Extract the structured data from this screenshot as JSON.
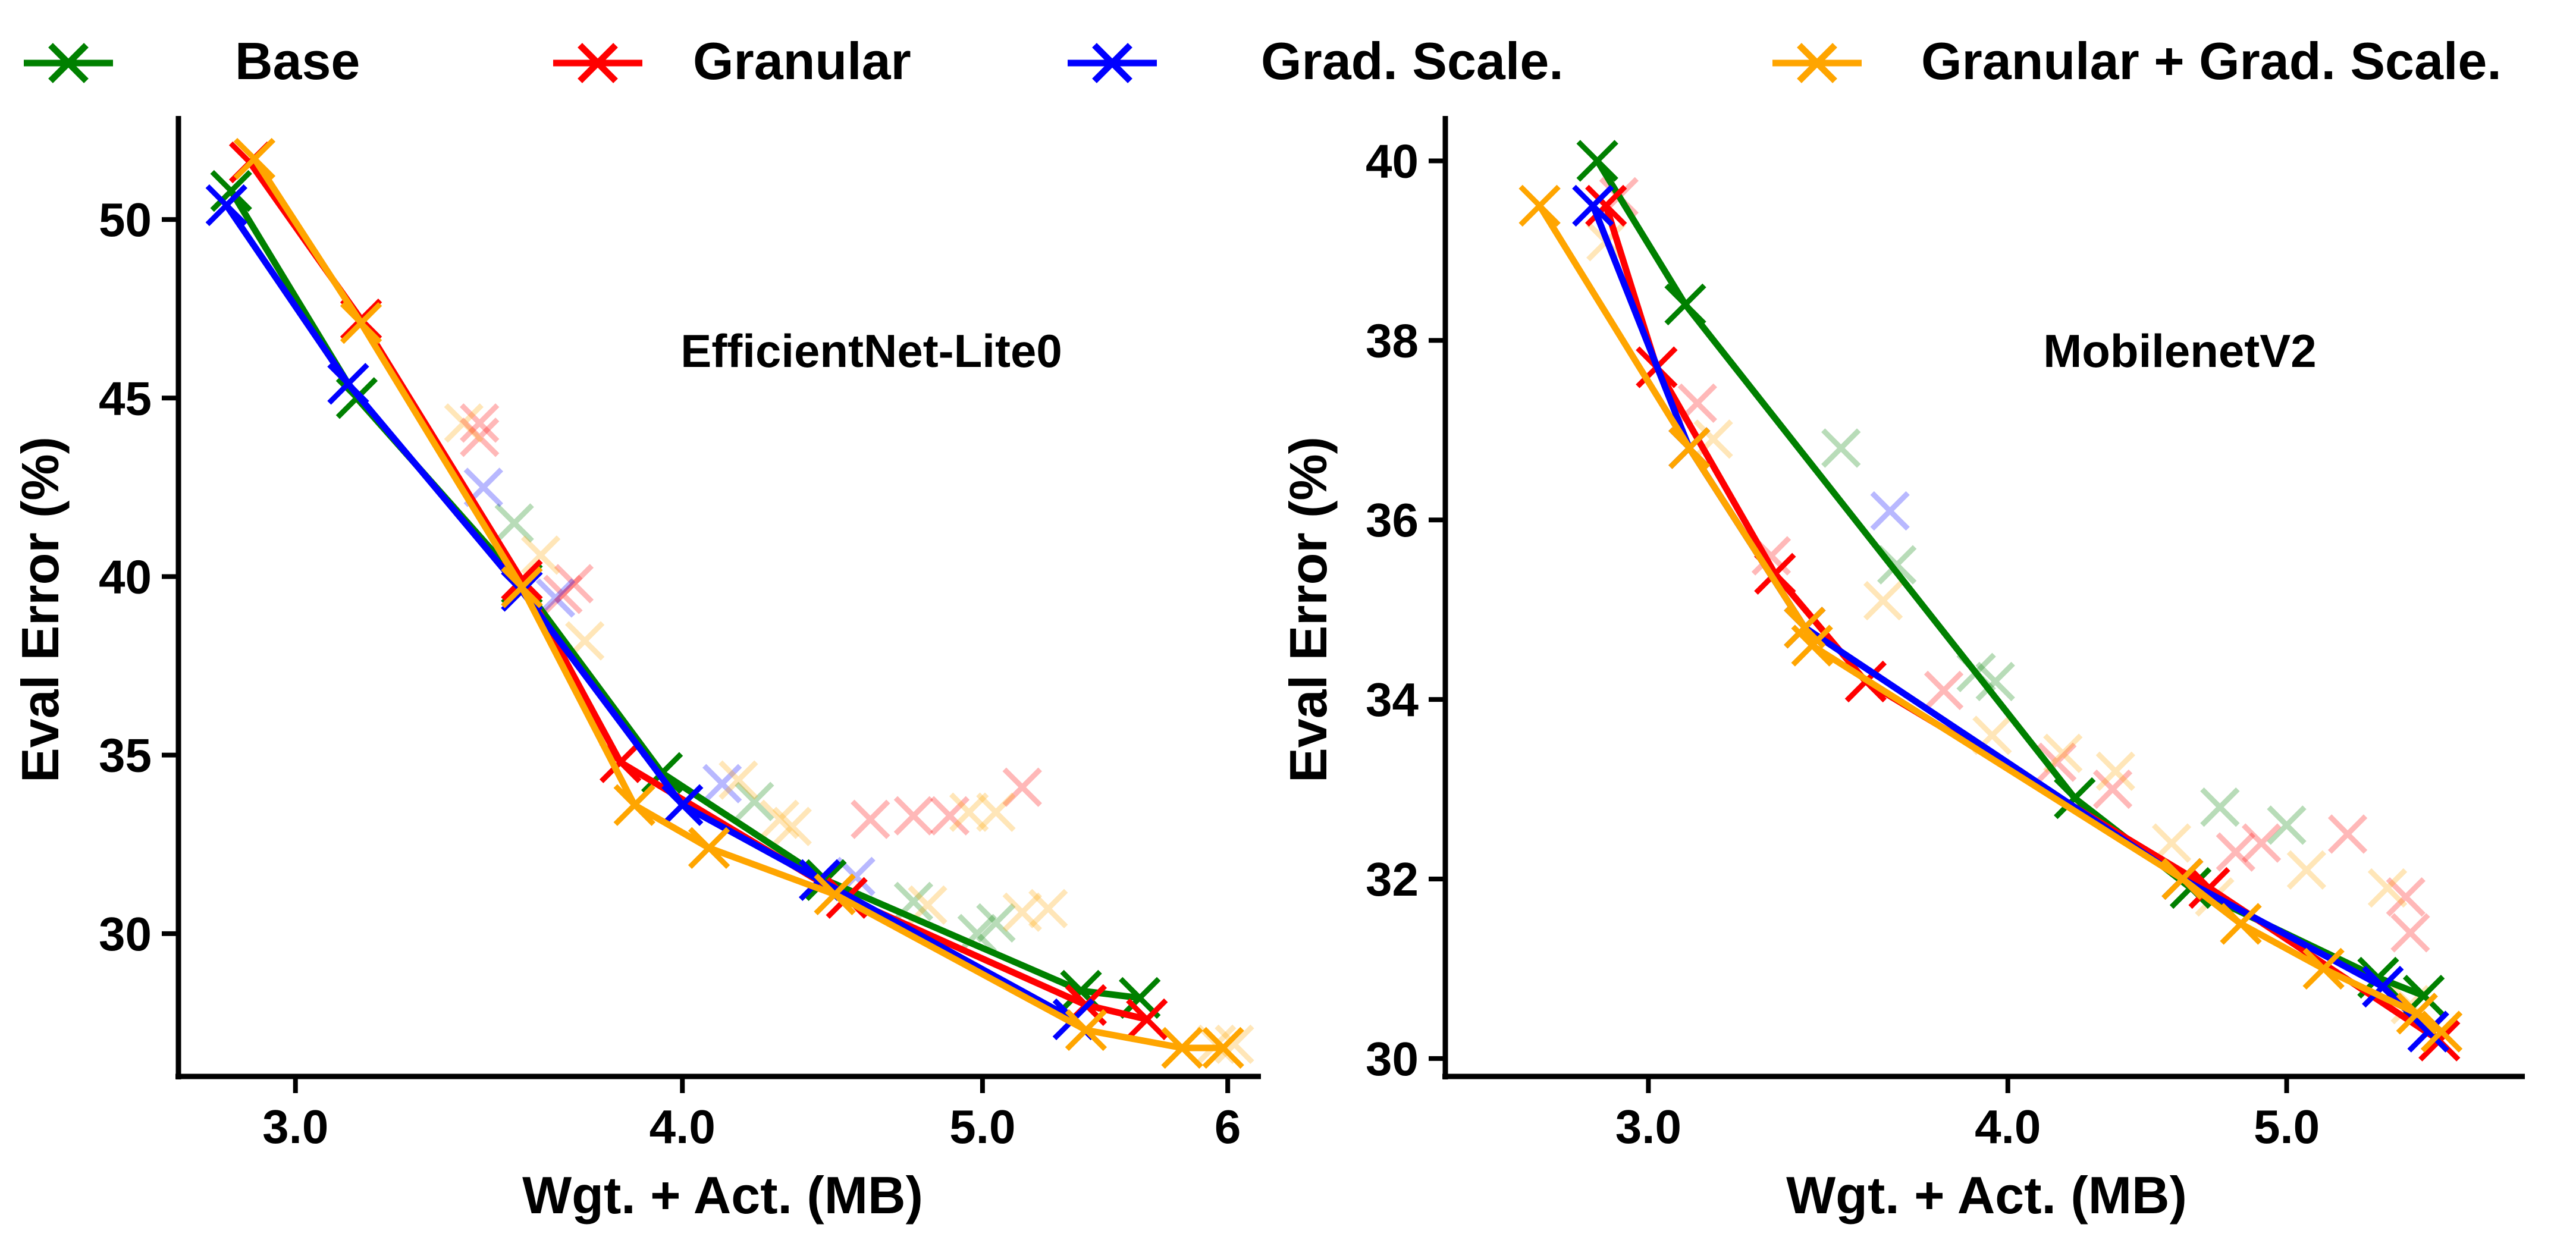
{
  "legend": [
    {
      "label": "Base",
      "color": "#008000"
    },
    {
      "label": "Granular",
      "color": "#ff0000"
    },
    {
      "label": "Grad. Scale.",
      "color": "#0000ff"
    },
    {
      "label": "Granular + Grad. Scale.",
      "color": "#ffa500"
    }
  ],
  "chart_data": [
    {
      "type": "line",
      "title": "EfficientNet-Lite0",
      "xlabel": "Wgt. + Act. (MB)",
      "ylabel": "Eval Error (%)",
      "xscale": "log",
      "xlim": [
        2.75,
        6.15
      ],
      "ylim": [
        26.0,
        52.9
      ],
      "xticks": [
        {
          "value": 3.0,
          "label": "3.0"
        },
        {
          "value": 4.0,
          "label": "4.0"
        },
        {
          "value": 5.0,
          "label": "5.0"
        },
        {
          "value": 6.0,
          "label": "6"
        }
      ],
      "yticks": [
        {
          "value": 30,
          "label": "30"
        },
        {
          "value": 35,
          "label": "35"
        },
        {
          "value": 40,
          "label": "40"
        },
        {
          "value": 45,
          "label": "45"
        },
        {
          "value": 50,
          "label": "50"
        }
      ],
      "series": [
        {
          "name": "Base",
          "color": "#008000",
          "line": [
            [
              2.86,
              50.8
            ],
            [
              3.14,
              45.0
            ],
            [
              3.55,
              39.8
            ],
            [
              3.94,
              34.5
            ],
            [
              4.45,
              31.5
            ],
            [
              5.38,
              28.4
            ],
            [
              5.62,
              28.2
            ]
          ],
          "scatter": [
            [
              3.53,
              41.5
            ],
            [
              4.22,
              33.7
            ],
            [
              4.75,
              30.9
            ],
            [
              4.98,
              30.0
            ],
            [
              5.05,
              30.3
            ]
          ]
        },
        {
          "name": "Granular",
          "color": "#ff0000",
          "line": [
            [
              2.9,
              51.6
            ],
            [
              3.15,
              47.2
            ],
            [
              3.55,
              39.9
            ],
            [
              3.82,
              34.8
            ],
            [
              4.52,
              31.0
            ],
            [
              5.4,
              28.0
            ],
            [
              5.65,
              27.6
            ]
          ],
          "scatter": [
            [
              3.44,
              44.3
            ],
            [
              3.44,
              43.9
            ],
            [
              3.69,
              39.8
            ],
            [
              3.66,
              39.5
            ],
            [
              4.6,
              33.2
            ],
            [
              4.75,
              33.3
            ],
            [
              4.88,
              33.3
            ],
            [
              5.15,
              34.1
            ]
          ]
        },
        {
          "name": "Grad. Scale.",
          "color": "#0000ff",
          "line": [
            [
              2.85,
              50.4
            ],
            [
              3.12,
              45.4
            ],
            [
              3.55,
              39.6
            ],
            [
              4.0,
              33.6
            ],
            [
              4.43,
              31.5
            ],
            [
              5.35,
              27.6
            ]
          ],
          "scatter": [
            [
              3.45,
              42.5
            ],
            [
              3.64,
              39.4
            ],
            [
              4.12,
              34.2
            ],
            [
              4.55,
              31.6
            ]
          ]
        },
        {
          "name": "Granular + Grad. Scale.",
          "color": "#ffa500",
          "line": [
            [
              2.91,
              51.7
            ],
            [
              3.15,
              47.1
            ],
            [
              3.55,
              39.7
            ],
            [
              3.86,
              33.6
            ],
            [
              4.08,
              32.4
            ],
            [
              4.48,
              31.1
            ],
            [
              5.4,
              27.3
            ],
            [
              5.8,
              26.8
            ],
            [
              5.98,
              26.8
            ]
          ],
          "scatter": [
            [
              3.4,
              44.3
            ],
            [
              3.6,
              40.6
            ],
            [
              3.72,
              38.2
            ],
            [
              4.17,
              34.3
            ],
            [
              4.3,
              33.2
            ],
            [
              4.34,
              33.0
            ],
            [
              4.8,
              30.8
            ],
            [
              4.95,
              33.4
            ],
            [
              5.05,
              33.4
            ],
            [
              5.15,
              30.6
            ],
            [
              5.25,
              30.7
            ],
            [
              5.95,
              26.9
            ],
            [
              6.03,
              26.9
            ]
          ]
        }
      ],
      "annotations": [
        {
          "text": "EfficientNet-Lite0"
        }
      ]
    },
    {
      "type": "line",
      "title": "MobilenetV2",
      "xlabel": "Wgt. + Act. (MB)",
      "ylabel": "Eval Error (%)",
      "xscale": "log",
      "xlim": [
        2.55,
        6.05
      ],
      "ylim": [
        29.8,
        40.5
      ],
      "xticks": [
        {
          "value": 3.0,
          "label": "3.0"
        },
        {
          "value": 4.0,
          "label": "4.0"
        },
        {
          "value": 5.0,
          "label": "5.0"
        }
      ],
      "yticks": [
        {
          "value": 30,
          "label": "30"
        },
        {
          "value": 32,
          "label": "32"
        },
        {
          "value": 34,
          "label": "34"
        },
        {
          "value": 36,
          "label": "36"
        },
        {
          "value": 38,
          "label": "38"
        },
        {
          "value": 40,
          "label": "40"
        }
      ],
      "series": [
        {
          "name": "Base",
          "color": "#008000",
          "line": [
            [
              2.88,
              40.0
            ],
            [
              3.09,
              38.4
            ],
            [
              4.22,
              32.9
            ],
            [
              4.63,
              31.9
            ],
            [
              5.38,
              30.9
            ],
            [
              5.58,
              30.7
            ]
          ],
          "scatter": [
            [
              3.5,
              36.8
            ],
            [
              3.66,
              35.5
            ],
            [
              3.9,
              34.3
            ],
            [
              3.96,
              34.2
            ],
            [
              4.74,
              32.8
            ],
            [
              5.0,
              32.6
            ]
          ]
        },
        {
          "name": "Granular",
          "color": "#ff0000",
          "line": [
            [
              2.9,
              39.5
            ],
            [
              3.02,
              37.7
            ],
            [
              3.32,
              35.4
            ],
            [
              3.57,
              34.2
            ],
            [
              4.7,
              31.9
            ],
            [
              5.65,
              30.2
            ]
          ],
          "scatter": [
            [
              2.93,
              39.6
            ],
            [
              3.12,
              37.3
            ],
            [
              3.31,
              35.6
            ],
            [
              3.8,
              34.1
            ],
            [
              4.16,
              33.3
            ],
            [
              4.35,
              33.0
            ],
            [
              4.8,
              32.3
            ],
            [
              4.9,
              32.4
            ],
            [
              5.25,
              32.5
            ],
            [
              5.5,
              31.8
            ],
            [
              5.52,
              31.4
            ]
          ]
        },
        {
          "name": "Grad. Scale.",
          "color": "#0000ff",
          "line": [
            [
              2.87,
              39.5
            ],
            [
              3.1,
              36.8
            ],
            [
              3.4,
              34.8
            ],
            [
              4.6,
              32.0
            ],
            [
              5.4,
              30.8
            ],
            [
              5.6,
              30.3
            ]
          ],
          "scatter": [
            [
              3.64,
              36.1
            ]
          ]
        },
        {
          "name": "Granular + Grad. Scale.",
          "color": "#ffa500",
          "line": [
            [
              2.75,
              39.5
            ],
            [
              3.1,
              36.8
            ],
            [
              3.4,
              34.8
            ],
            [
              3.42,
              34.6
            ],
            [
              4.6,
              32.0
            ],
            [
              4.82,
              31.5
            ],
            [
              5.15,
              31.0
            ],
            [
              5.55,
              30.5
            ],
            [
              5.66,
              30.3
            ]
          ],
          "scatter": [
            [
              2.9,
              39.1
            ],
            [
              3.16,
              36.9
            ],
            [
              3.62,
              35.1
            ],
            [
              3.95,
              33.6
            ],
            [
              4.18,
              33.4
            ],
            [
              4.36,
              33.2
            ],
            [
              4.56,
              32.4
            ],
            [
              4.72,
              31.8
            ],
            [
              5.08,
              32.1
            ],
            [
              5.42,
              31.9
            ],
            [
              5.52,
              30.6
            ]
          ]
        }
      ],
      "annotations": [
        {
          "text": "MobilenetV2"
        }
      ]
    }
  ]
}
